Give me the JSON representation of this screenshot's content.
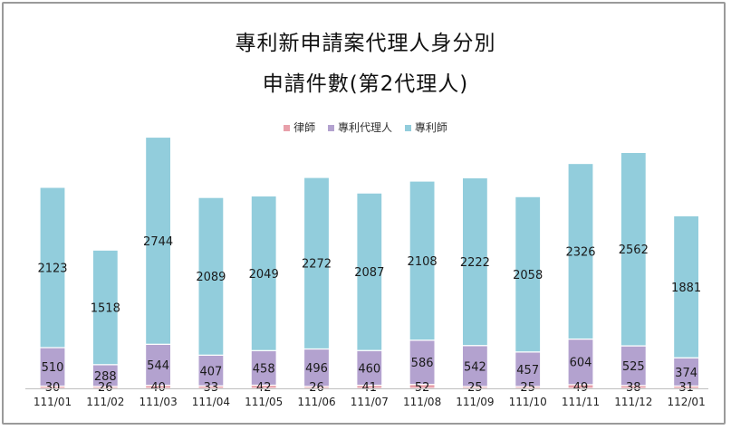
{
  "chart_data": {
    "type": "bar",
    "stacked": true,
    "title": "專利新申請案代理人身分別",
    "subtitle": "申請件數(第2代理人)",
    "categories": [
      "111/01",
      "111/02",
      "111/03",
      "111/04",
      "111/05",
      "111/06",
      "111/07",
      "111/08",
      "111/09",
      "111/10",
      "111/11",
      "111/12",
      "112/01"
    ],
    "series": [
      {
        "name": "律師",
        "color": "#e8a0aa",
        "values": [
          30,
          26,
          40,
          33,
          42,
          26,
          41,
          52,
          25,
          25,
          49,
          38,
          31
        ]
      },
      {
        "name": "專利代理人",
        "color": "#b3a2cf",
        "values": [
          510,
          288,
          544,
          407,
          458,
          496,
          460,
          586,
          542,
          457,
          604,
          525,
          374
        ]
      },
      {
        "name": "專利師",
        "color": "#92cddc",
        "values": [
          2123,
          1518,
          2744,
          2089,
          2049,
          2272,
          2087,
          2108,
          2222,
          2058,
          2326,
          2562,
          1881
        ]
      }
    ],
    "legend_position": "top",
    "grid": false,
    "ylim": [
      0,
      3400
    ]
  }
}
